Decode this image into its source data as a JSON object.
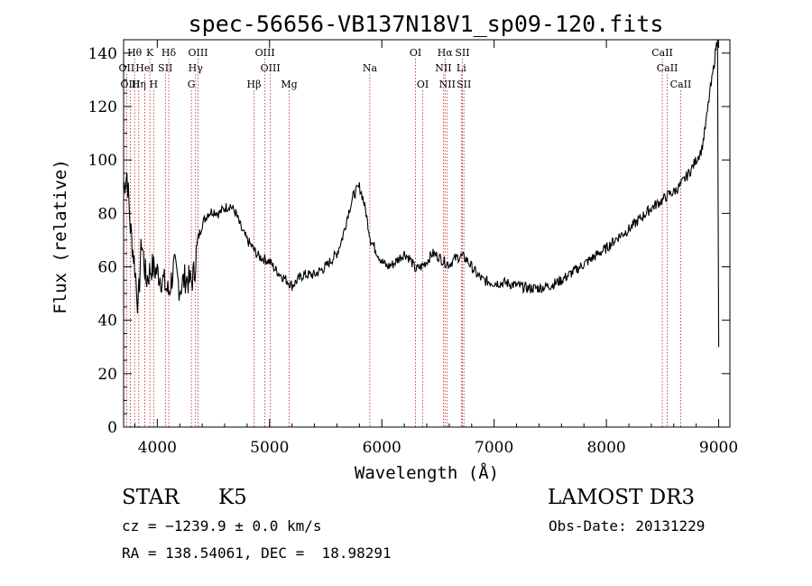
{
  "chart_data": {
    "type": "line",
    "title": "spec-56656-VB137N18V1_sp09-120.fits",
    "xlabel": "Wavelength (Å)",
    "ylabel": "Flux (relative)",
    "xlim": [
      3700,
      9100
    ],
    "ylim": [
      0,
      145
    ],
    "x_ticks": [
      4000,
      5000,
      6000,
      7000,
      8000,
      9000
    ],
    "x_tick_labels": [
      "4000",
      "5000",
      "6000",
      "7000",
      "8000",
      "9000"
    ],
    "y_ticks": [
      0,
      20,
      40,
      60,
      80,
      100,
      120,
      140
    ],
    "y_tick_labels": [
      "0",
      "20",
      "40",
      "60",
      "80",
      "100",
      "120",
      "140"
    ],
    "grid": false,
    "series": [
      {
        "name": "flux",
        "x": [
          3700,
          3730,
          3760,
          3800,
          3830,
          3860,
          3900,
          3950,
          4000,
          4050,
          4100,
          4150,
          4200,
          4250,
          4300,
          4330,
          4360,
          4400,
          4450,
          4500,
          4550,
          4600,
          4650,
          4700,
          4750,
          4800,
          4850,
          4900,
          4950,
          5000,
          5050,
          5100,
          5150,
          5200,
          5300,
          5400,
          5500,
          5600,
          5650,
          5700,
          5750,
          5800,
          5830,
          5860,
          5900,
          5950,
          6000,
          6050,
          6100,
          6150,
          6200,
          6250,
          6300,
          6350,
          6400,
          6450,
          6500,
          6550,
          6600,
          6650,
          6700,
          6750,
          6800,
          6850,
          6900,
          7000,
          7100,
          7200,
          7300,
          7400,
          7500,
          7600,
          7700,
          7800,
          7900,
          8000,
          8100,
          8200,
          8300,
          8400,
          8500,
          8550,
          8600,
          8650,
          8700,
          8750,
          8800,
          8850,
          8880,
          8900,
          8920,
          8940,
          8960,
          8975,
          8990,
          9000
        ],
        "y": [
          90,
          95,
          75,
          60,
          45,
          70,
          55,
          60,
          58,
          55,
          50,
          60,
          52,
          56,
          54,
          58,
          70,
          76,
          80,
          81,
          80,
          82,
          83,
          80,
          74,
          70,
          67,
          64,
          63,
          62,
          59,
          57,
          55,
          53,
          57,
          57,
          60,
          65,
          71,
          80,
          87,
          90,
          86,
          80,
          70,
          66,
          62,
          60,
          61,
          63,
          65,
          63,
          59,
          60,
          62,
          65,
          64,
          62,
          61,
          63,
          64,
          63,
          60,
          57,
          55,
          54,
          54,
          53,
          52,
          52,
          53,
          55,
          58,
          61,
          64,
          67,
          71,
          74,
          78,
          82,
          85,
          87,
          88,
          90,
          93,
          96,
          100,
          104,
          112,
          118,
          125,
          130,
          136,
          142,
          145,
          30
        ]
      }
    ],
    "line_markers": [
      {
        "label": "Hθ",
        "x": 3798,
        "row": 0
      },
      {
        "label": "K",
        "x": 3934,
        "row": 0
      },
      {
        "label": "Hδ",
        "x": 4102,
        "row": 0
      },
      {
        "label": "OIII",
        "x": 4363,
        "row": 0
      },
      {
        "label": "OIII",
        "x": 4959,
        "row": 0
      },
      {
        "label": "OI",
        "x": 6300,
        "row": 0
      },
      {
        "label": "Hα",
        "x": 6563,
        "row": 0
      },
      {
        "label": "SII",
        "x": 6717,
        "row": 0
      },
      {
        "label": "CaII",
        "x": 8498,
        "row": 0
      },
      {
        "label": "OII",
        "x": 3727,
        "row": 1
      },
      {
        "label": "HeI",
        "x": 3889,
        "row": 1
      },
      {
        "label": "SII",
        "x": 4072,
        "row": 1
      },
      {
        "label": "Hγ",
        "x": 4341,
        "row": 1
      },
      {
        "label": "OIII",
        "x": 5007,
        "row": 1
      },
      {
        "label": "Na",
        "x": 5893,
        "row": 1
      },
      {
        "label": "NII",
        "x": 6548,
        "row": 1
      },
      {
        "label": "Li",
        "x": 6708,
        "row": 1
      },
      {
        "label": "CaII",
        "x": 8542,
        "row": 1
      },
      {
        "label": "OIII",
        "x": 3760,
        "row": 2
      },
      {
        "label": "Hη",
        "x": 3835,
        "row": 2
      },
      {
        "label": "H",
        "x": 3968,
        "row": 2
      },
      {
        "label": "G",
        "x": 4304,
        "row": 2
      },
      {
        "label": "Hβ",
        "x": 4861,
        "row": 2
      },
      {
        "label": "Mg",
        "x": 5175,
        "row": 2
      },
      {
        "label": "OI",
        "x": 6364,
        "row": 2
      },
      {
        "label": "NII",
        "x": 6583,
        "row": 2
      },
      {
        "label": "SII",
        "x": 6731,
        "row": 2
      },
      {
        "label": "CaII",
        "x": 8662,
        "row": 2
      }
    ]
  },
  "info": {
    "object_class": "STAR",
    "subclass": "K5",
    "survey": "LAMOST DR3",
    "cz": "cz = −1239.9 ± 0.0 km/s",
    "obs_date": "Obs-Date: 20131229",
    "coords": "RA = 138.54061, DEC =  18.98291"
  }
}
